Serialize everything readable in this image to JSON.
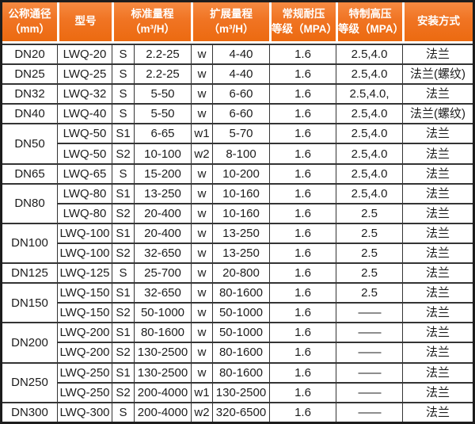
{
  "table": {
    "title_semantic": "LWQ flow meter specification table",
    "colors": {
      "header_bg_top": "#f68a41",
      "header_bg_bottom": "#ec6a10",
      "header_text": "#ffffff",
      "body_text": "#1c1c1c",
      "grid_border": "#343434"
    },
    "header": {
      "diameter": {
        "line1": "公称通径",
        "line2": "（mm）"
      },
      "model": "型号",
      "standard": {
        "line1": "标准量程",
        "line2": "（m³/H）"
      },
      "extended": {
        "line1": "扩展量程",
        "line2": "（m³/H）"
      },
      "regular": {
        "line1": "常规耐压",
        "line2": "等级（MPA）"
      },
      "special": {
        "line1": "特制高压",
        "line2": "等级（MPA）"
      },
      "install": "安装方式"
    },
    "rows": [
      {
        "diameter": "DN20",
        "rowspan": 1,
        "model": "LWQ-20",
        "s": "S",
        "standard": "2.2-25",
        "w": "w",
        "extended": "4-40",
        "regular": "1.6",
        "special": "2.5,4.0",
        "install": "法兰"
      },
      {
        "diameter": "DN25",
        "rowspan": 1,
        "model": "LWQ-25",
        "s": "S",
        "standard": "2.2-25",
        "w": "w",
        "extended": "4-40",
        "regular": "1.6",
        "special": "2.5,4.0",
        "install": "法兰(螺纹)"
      },
      {
        "diameter": "DN32",
        "rowspan": 1,
        "model": "LWQ-32",
        "s": "S",
        "standard": "5-50",
        "w": "w",
        "extended": "6-60",
        "regular": "1.6",
        "special": "2.5,4.0,",
        "install": "法兰"
      },
      {
        "diameter": "DN40",
        "rowspan": 1,
        "model": "LWQ-40",
        "s": "S",
        "standard": "5-50",
        "w": "w",
        "extended": "6-60",
        "regular": "1.6",
        "special": "2.5,4.0",
        "install": "法兰(螺纹)"
      },
      {
        "diameter": "DN50",
        "rowspan": 2,
        "model": "LWQ-50",
        "s": "S1",
        "standard": "6-65",
        "w": "w1",
        "extended": "5-70",
        "regular": "1.6",
        "special": "2.5,4.0",
        "install": "法兰"
      },
      {
        "model": "LWQ-50",
        "s": "S2",
        "standard": "10-100",
        "w": "w2",
        "extended": "8-100",
        "regular": "1.6",
        "special": "2.5,4.0",
        "install": "法兰"
      },
      {
        "diameter": "DN65",
        "rowspan": 1,
        "model": "LWQ-65",
        "s": "S",
        "standard": "15-200",
        "w": "w",
        "extended": "10-200",
        "regular": "1.6",
        "special": "2.5,4.0",
        "install": "法兰"
      },
      {
        "diameter": "DN80",
        "rowspan": 2,
        "model": "LWQ-80",
        "s": "S1",
        "standard": "13-250",
        "w": "w",
        "extended": "10-160",
        "regular": "1.6",
        "special": "2.5,4.0",
        "install": "法兰"
      },
      {
        "model": "LWQ-80",
        "s": "S2",
        "standard": "20-400",
        "w": "w",
        "extended": "10-160",
        "regular": "1.6",
        "special": "2.5",
        "install": "法兰"
      },
      {
        "diameter": "DN100",
        "rowspan": 2,
        "model": "LWQ-100",
        "s": "S1",
        "standard": "20-400",
        "w": "w",
        "extended": "13-250",
        "regular": "1.6",
        "special": "2.5",
        "install": "法兰"
      },
      {
        "model": "LWQ-100",
        "s": "S2",
        "standard": "32-650",
        "w": "w",
        "extended": "13-250",
        "regular": "1.6",
        "special": "2.5",
        "install": "法兰"
      },
      {
        "diameter": "DN125",
        "rowspan": 1,
        "model": "LWQ-125",
        "s": "S",
        "standard": "25-700",
        "w": "w",
        "extended": "20-800",
        "regular": "1.6",
        "special": "2.5",
        "install": "法兰"
      },
      {
        "diameter": "DN150",
        "rowspan": 2,
        "model": "LWQ-150",
        "s": "S1",
        "standard": "32-650",
        "w": "w",
        "extended": "80-1600",
        "regular": "1.6",
        "special": "2.5",
        "install": "法兰"
      },
      {
        "model": "LWQ-150",
        "s": "S2",
        "standard": "50-1000",
        "w": "w",
        "extended": "50-1000",
        "regular": "1.6",
        "special": "——",
        "install": "法兰"
      },
      {
        "diameter": "DN200",
        "rowspan": 2,
        "model": "LWQ-200",
        "s": "S1",
        "standard": "80-1600",
        "w": "w",
        "extended": "50-1000",
        "regular": "1.6",
        "special": "——",
        "install": "法兰"
      },
      {
        "model": "LWQ-200",
        "s": "S2",
        "standard": "130-2500",
        "w": "w",
        "extended": "80-1600",
        "regular": "1.6",
        "special": "——",
        "install": "法兰"
      },
      {
        "diameter": "DN250",
        "rowspan": 2,
        "model": "LWQ-250",
        "s": "S1",
        "standard": "130-2500",
        "w": "w",
        "extended": "80-1600",
        "regular": "1.6",
        "special": "——",
        "install": "法兰"
      },
      {
        "model": "LWQ-250",
        "s": "S2",
        "standard": "200-4000",
        "w": "w1",
        "extended": "130-2500",
        "regular": "1.6",
        "special": "——",
        "install": "法兰"
      },
      {
        "diameter": "DN300",
        "rowspan": 1,
        "model": "LWQ-300",
        "s": "S",
        "standard": "200-4000",
        "w": "w2",
        "extended": "320-6500",
        "regular": "1.6",
        "special": "——",
        "install": "法兰"
      }
    ]
  }
}
